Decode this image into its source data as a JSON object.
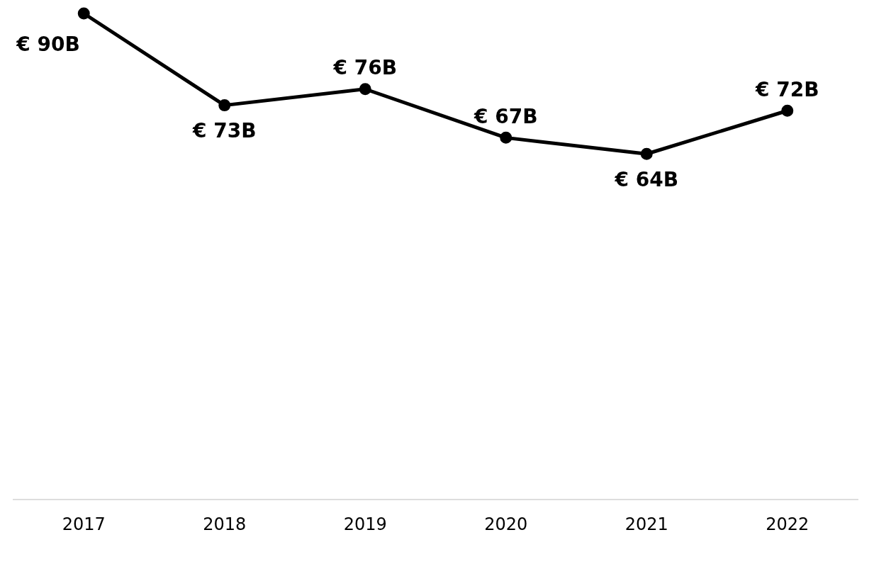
{
  "chart_data": {
    "type": "line",
    "categories": [
      "2017",
      "2018",
      "2019",
      "2020",
      "2021",
      "2022"
    ],
    "series": [
      {
        "color": "#000000",
        "values": [
          90,
          73,
          76,
          67,
          64,
          72
        ],
        "value_labels": [
          "€ 90B",
          "€ 73B",
          "€ 76B",
          "€ 67B",
          "€ 64B",
          "€ 72B"
        ]
      }
    ],
    "tick_labels": "x",
    "grid": false,
    "legend": false,
    "marker": "circle",
    "line_style": "solid"
  }
}
